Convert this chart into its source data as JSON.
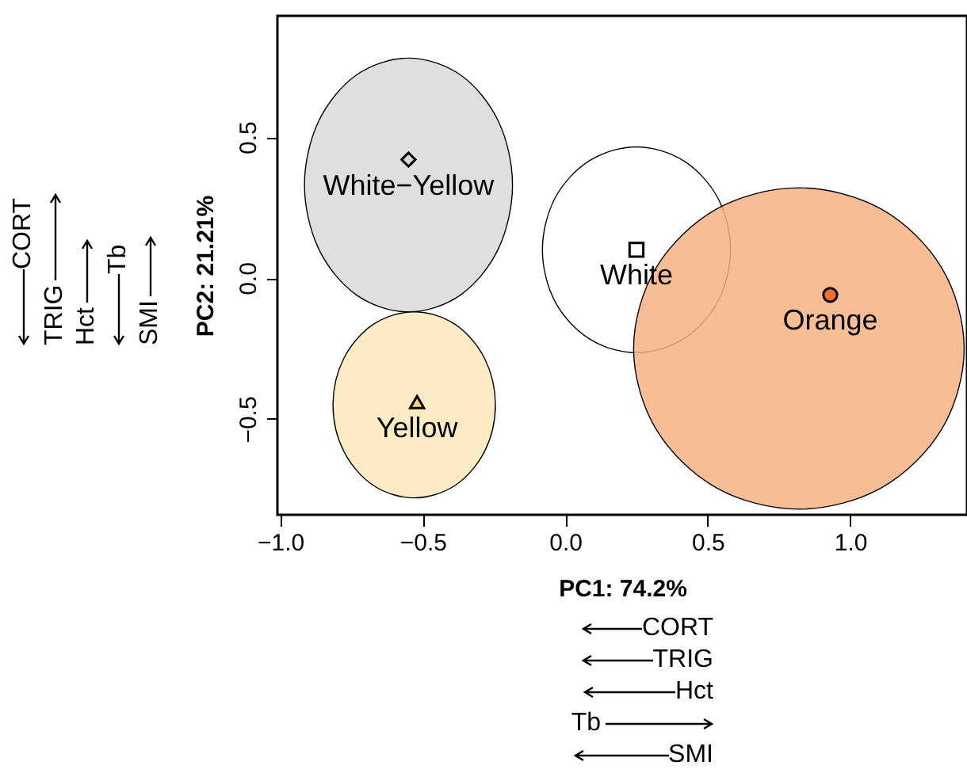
{
  "chart_data": {
    "type": "scatter",
    "xlabel": "PC1: 74.2%",
    "ylabel": "PC2: 21.21%",
    "xlim": [
      -1.01,
      1.41
    ],
    "ylim": [
      -0.84,
      0.93
    ],
    "xticks": [
      {
        "value": -1,
        "label": "−1.0"
      },
      -0.5,
      {
        "value": 0,
        "label": "0.0"
      },
      0.5,
      {
        "value": 1,
        "label": "1.0"
      }
    ],
    "yticks": [
      -0.5,
      {
        "value": 0,
        "label": "0.0"
      },
      0.5
    ],
    "grid": false,
    "annotations": [
      "CORT",
      "TRIG",
      "Hct",
      "Tb",
      "SMI",
      "CORT",
      "TRIG",
      "Hct",
      "Tb",
      "SMI"
    ],
    "series": [
      {
        "type": "area",
        "color": "#d9d9d9",
        "x": [
          -0.185,
          -0.234,
          -0.367,
          -0.55,
          -0.733,
          -0.866,
          -0.915,
          -0.866,
          -0.733,
          -0.55,
          -0.367,
          -0.234
        ],
        "values": [
          0.33,
          0.555,
          0.72,
          0.78,
          0.72,
          0.555,
          0.33,
          0.105,
          -0.06,
          -0.12,
          -0.06,
          0.105
        ]
      },
      {
        "type": "area",
        "color": "#fde9b8",
        "x": [
          -0.245,
          -0.283,
          -0.387,
          -0.53,
          -0.673,
          -0.777,
          -0.815,
          -0.777,
          -0.673,
          -0.53,
          -0.387,
          -0.283
        ],
        "values": [
          -0.45,
          -0.285,
          -0.164,
          -0.12,
          -0.164,
          -0.285,
          -0.45,
          -0.615,
          -0.736,
          -0.78,
          -0.736,
          -0.615
        ]
      },
      {
        "type": "area",
        "color": "#ffffff",
        "x": [
          0.58,
          0.536,
          0.415,
          0.25,
          0.085,
          -0.036,
          -0.08,
          -0.036,
          0.085,
          0.25,
          0.415,
          0.536
        ],
        "values": [
          0.1,
          0.283,
          0.416,
          0.465,
          0.416,
          0.283,
          0.1,
          -0.083,
          -0.216,
          -0.265,
          -0.216,
          -0.083
        ]
      },
      {
        "type": "area",
        "color": "#f6b183",
        "x": [
          1.4,
          1.322,
          1.11,
          0.82,
          0.53,
          0.318,
          0.24,
          0.318,
          0.53,
          0.82,
          1.11,
          1.322
        ],
        "values": [
          -0.25,
          0.035,
          0.244,
          0.32,
          0.244,
          0.035,
          -0.25,
          -0.535,
          -0.744,
          -0.82,
          -0.744,
          -0.535
        ]
      },
      {
        "name": "White−Yellow",
        "marker": "diamond",
        "color": "#d9d9d9",
        "x": [
          -0.55
        ],
        "values": [
          0.42
        ]
      },
      {
        "name": "White",
        "marker": "square",
        "color": "#ffffff",
        "x": [
          0.25
        ],
        "values": [
          0.1
        ]
      },
      {
        "name": "Orange",
        "marker": "circle",
        "color": "#ee7030",
        "x": [
          0.93
        ],
        "values": [
          -0.06
        ]
      },
      {
        "name": "Yellow",
        "marker": "triangle",
        "color": "#f8d56b",
        "x": [
          -0.52
        ],
        "values": [
          -0.44
        ]
      }
    ]
  }
}
